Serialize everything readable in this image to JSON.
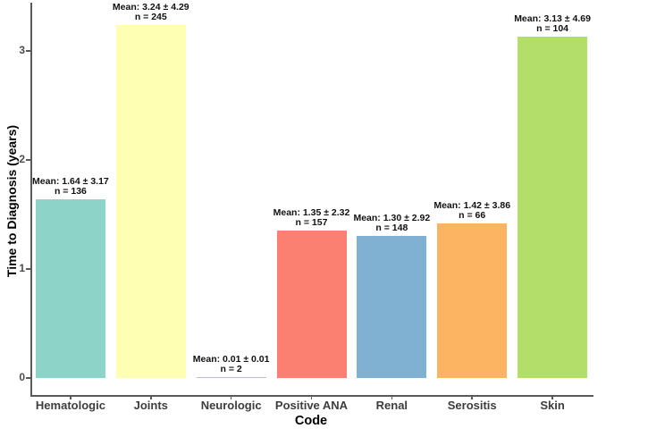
{
  "chart_data": {
    "type": "bar",
    "title": "",
    "xlabel": "Code",
    "ylabel": "Time to Diagnosis (years)",
    "ylim": [
      0,
      3.45
    ],
    "yticks": [
      0,
      1,
      2,
      3
    ],
    "grid": false,
    "legend": "none",
    "categories": [
      "Hematologic",
      "Joints",
      "Neurologic",
      "Positive ANA",
      "Renal",
      "Serositis",
      "Skin"
    ],
    "values": [
      1.64,
      3.24,
      0.01,
      1.35,
      1.3,
      1.42,
      3.13
    ],
    "annotations": [
      {
        "mean_line": "Mean: 1.64 ± 3.17",
        "n_line": "n = 136"
      },
      {
        "mean_line": "Mean: 3.24 ± 4.29",
        "n_line": "n = 245"
      },
      {
        "mean_line": "Mean: 0.01 ± 0.01",
        "n_line": "n = 2"
      },
      {
        "mean_line": "Mean: 1.35 ± 2.32",
        "n_line": "n = 157"
      },
      {
        "mean_line": "Mean: 1.30 ± 2.92",
        "n_line": "n = 148"
      },
      {
        "mean_line": "Mean: 1.42 ± 3.86",
        "n_line": "n = 66"
      },
      {
        "mean_line": "Mean: 3.13 ± 4.69",
        "n_line": "n = 104"
      }
    ],
    "bar_colors": [
      "#8DD3C7",
      "#FFFFB3",
      "#BEBADA",
      "#FB8072",
      "#80B1D3",
      "#FDB462",
      "#B3DE69"
    ],
    "axis_line_color": "#58595b",
    "tick_label_color": "#4d4d4d",
    "annotation_text_color": "#111111"
  }
}
